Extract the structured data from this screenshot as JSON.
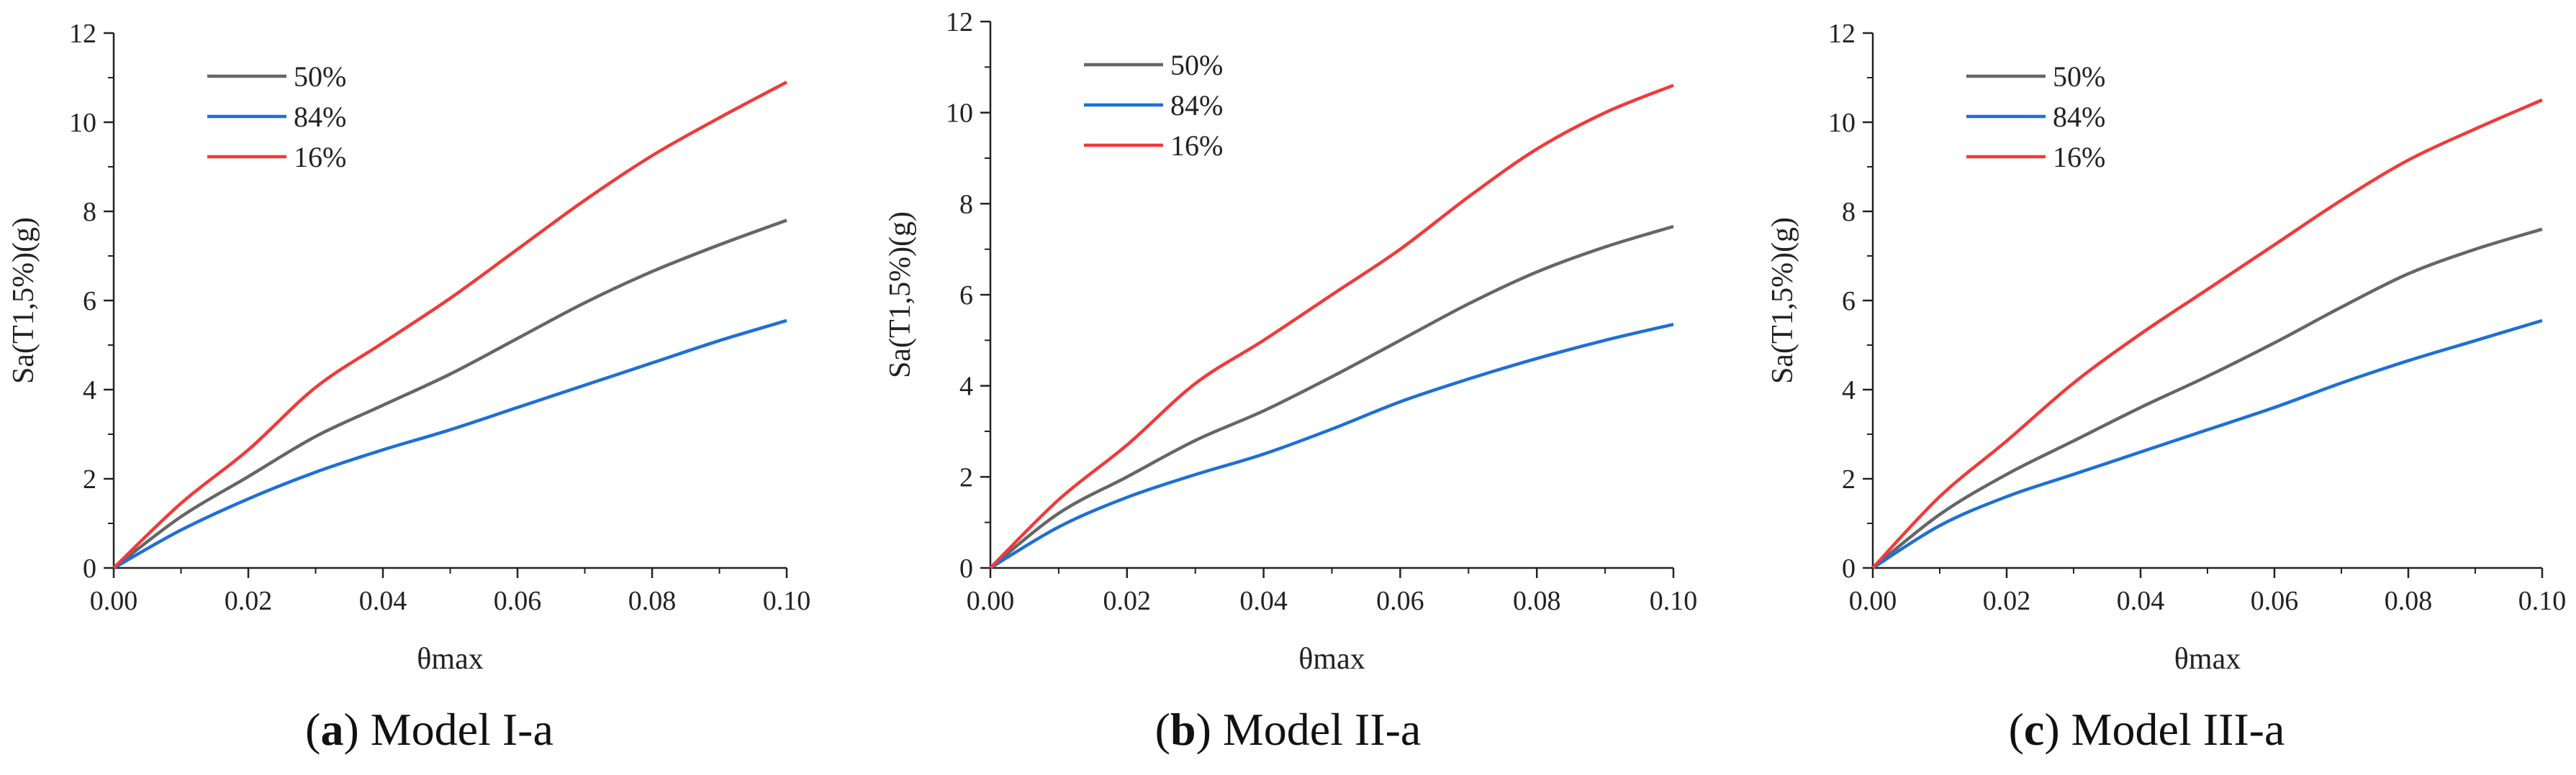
{
  "colors": {
    "s50": "#666666",
    "s84": "#1f6fd6",
    "s16": "#f03a3a",
    "axis": "#222222"
  },
  "chart_data": [
    {
      "type": "line",
      "caption_letter": "a",
      "caption_text": "Model I-a",
      "xlabel": "θmax",
      "ylabel": "Sa(T1,5%)(g)",
      "xlim": [
        0,
        0.1
      ],
      "ylim": [
        0,
        12
      ],
      "xticks": [
        "0.00",
        "0.02",
        "0.04",
        "0.06",
        "0.08",
        "0.10"
      ],
      "yticks": [
        "0",
        "2",
        "4",
        "6",
        "8",
        "10",
        "12"
      ],
      "x": [
        0,
        0.01,
        0.02,
        0.03,
        0.04,
        0.05,
        0.06,
        0.07,
        0.08,
        0.09,
        0.1
      ],
      "series": [
        {
          "name": "50%",
          "color": "#666666",
          "values": [
            0,
            1.15,
            2.05,
            2.95,
            3.65,
            4.35,
            5.15,
            5.95,
            6.65,
            7.25,
            7.8
          ]
        },
        {
          "name": "84%",
          "color": "#1f6fd6",
          "values": [
            0,
            0.85,
            1.55,
            2.15,
            2.65,
            3.1,
            3.6,
            4.1,
            4.6,
            5.1,
            5.55
          ]
        },
        {
          "name": "16%",
          "color": "#f03a3a",
          "values": [
            0,
            1.45,
            2.65,
            4.05,
            5.05,
            6.05,
            7.15,
            8.25,
            9.25,
            10.1,
            10.9
          ]
        }
      ]
    },
    {
      "type": "line",
      "caption_letter": "b",
      "caption_text": "Model II-a",
      "xlabel": "θmax",
      "ylabel": "Sa(T1,5%)(g)",
      "xlim": [
        0,
        0.1
      ],
      "ylim": [
        0,
        12
      ],
      "xticks": [
        "0.00",
        "0.02",
        "0.04",
        "0.06",
        "0.08",
        "0.10"
      ],
      "yticks": [
        "0",
        "2",
        "4",
        "6",
        "8",
        "10",
        "12"
      ],
      "x": [
        0,
        0.01,
        0.02,
        0.03,
        0.04,
        0.05,
        0.06,
        0.07,
        0.08,
        0.09,
        0.1
      ],
      "series": [
        {
          "name": "50%",
          "color": "#666666",
          "values": [
            0,
            1.2,
            2.0,
            2.8,
            3.45,
            4.2,
            5.0,
            5.8,
            6.5,
            7.05,
            7.5
          ]
        },
        {
          "name": "84%",
          "color": "#1f6fd6",
          "values": [
            0,
            0.9,
            1.55,
            2.05,
            2.5,
            3.05,
            3.65,
            4.15,
            4.6,
            5.0,
            5.35
          ]
        },
        {
          "name": "16%",
          "color": "#f03a3a",
          "values": [
            0,
            1.5,
            2.7,
            4.05,
            5.0,
            6.0,
            7.0,
            8.15,
            9.2,
            10.0,
            10.6
          ]
        }
      ]
    },
    {
      "type": "line",
      "caption_letter": "c",
      "caption_text": "Model III-a",
      "xlabel": "θmax",
      "ylabel": "Sa(T1,5%)(g)",
      "xlim": [
        0,
        0.1
      ],
      "ylim": [
        0,
        12
      ],
      "xticks": [
        "0.00",
        "0.02",
        "0.04",
        "0.06",
        "0.08",
        "0.10"
      ],
      "yticks": [
        "0",
        "2",
        "4",
        "6",
        "8",
        "10",
        "12"
      ],
      "x": [
        0,
        0.01,
        0.02,
        0.03,
        0.04,
        0.05,
        0.06,
        0.07,
        0.08,
        0.09,
        0.1
      ],
      "series": [
        {
          "name": "50%",
          "color": "#666666",
          "values": [
            0,
            1.2,
            2.1,
            2.85,
            3.6,
            4.3,
            5.05,
            5.85,
            6.6,
            7.15,
            7.6
          ]
        },
        {
          "name": "84%",
          "color": "#1f6fd6",
          "values": [
            0,
            0.95,
            1.6,
            2.1,
            2.6,
            3.1,
            3.6,
            4.15,
            4.65,
            5.1,
            5.55
          ]
        },
        {
          "name": "16%",
          "color": "#f03a3a",
          "values": [
            0,
            1.6,
            2.85,
            4.15,
            5.25,
            6.25,
            7.25,
            8.25,
            9.15,
            9.85,
            10.5
          ]
        }
      ]
    }
  ]
}
